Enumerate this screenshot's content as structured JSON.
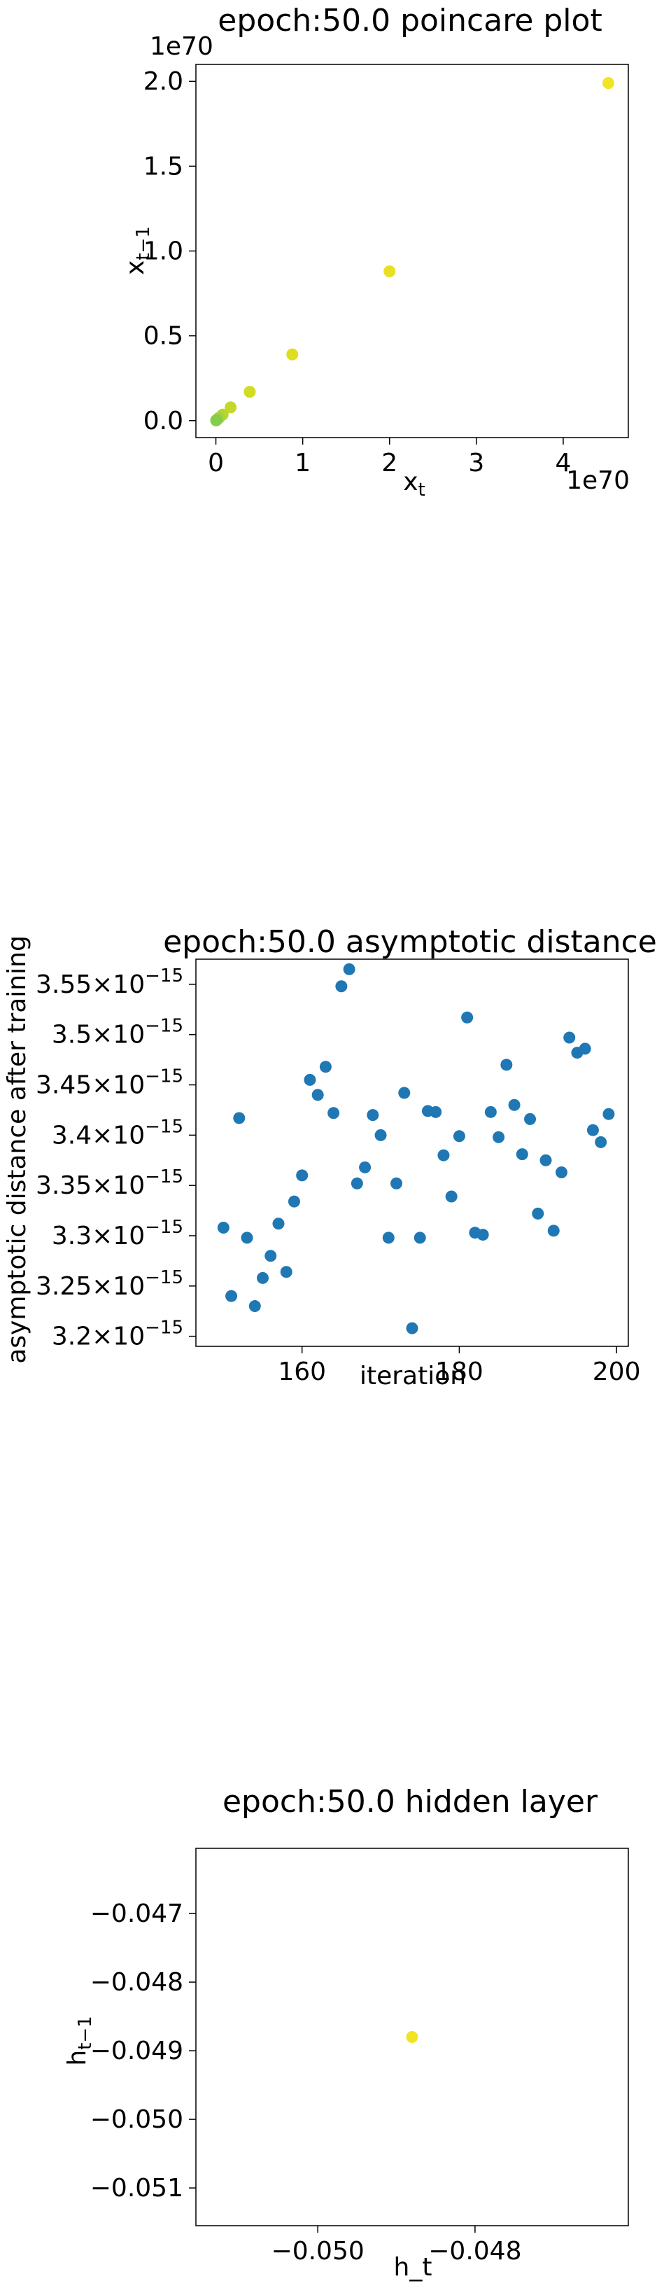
{
  "chart_data": [
    {
      "type": "scatter",
      "title": "epoch:50.0 poincare plot",
      "xlabel": "x_t",
      "ylabel": "x_{t-1}",
      "x_offset_label": "1e70",
      "y_offset_label": "1e70",
      "xlim": [
        -0.23,
        4.75
      ],
      "ylim": [
        -0.1,
        2.1
      ],
      "xticks": [
        {
          "v": 0,
          "label": "0"
        },
        {
          "v": 1,
          "label": "1"
        },
        {
          "v": 2,
          "label": "2"
        },
        {
          "v": 3,
          "label": "3"
        },
        {
          "v": 4,
          "label": "4"
        }
      ],
      "yticks": [
        {
          "v": 0.0,
          "label": "0.0"
        },
        {
          "v": 0.5,
          "label": "0.5"
        },
        {
          "v": 1.0,
          "label": "1.0"
        },
        {
          "v": 1.5,
          "label": "1.5"
        },
        {
          "v": 2.0,
          "label": "2.0"
        }
      ],
      "points": [
        {
          "x": 4.52,
          "y": 1.99,
          "color": "#f0e523"
        },
        {
          "x": 2.0,
          "y": 0.88,
          "color": "#e8e022"
        },
        {
          "x": 0.88,
          "y": 0.39,
          "color": "#dfdd20"
        },
        {
          "x": 0.39,
          "y": 0.17,
          "color": "#d2dc22"
        },
        {
          "x": 0.17,
          "y": 0.078,
          "color": "#c2d92a"
        },
        {
          "x": 0.078,
          "y": 0.035,
          "color": "#b3d632"
        },
        {
          "x": 0.035,
          "y": 0.016,
          "color": "#a5d33a"
        },
        {
          "x": 0.016,
          "y": 0.007,
          "color": "#97d140"
        },
        {
          "x": 0.007,
          "y": 0.003,
          "color": "#8dcf45"
        },
        {
          "x": 0.003,
          "y": 0.001,
          "color": "#86cc48"
        }
      ]
    },
    {
      "type": "scatter",
      "title": "epoch:50.0 asymptotic distance",
      "xlabel": "iteration",
      "ylabel": "asymptotic distance after training",
      "xlim": [
        146.5,
        201.5
      ],
      "ylim": [
        3.19e-15,
        3.575e-15
      ],
      "xticks": [
        {
          "v": 160,
          "label": "160"
        },
        {
          "v": 180,
          "label": "180"
        },
        {
          "v": 200,
          "label": "200"
        }
      ],
      "yticks": [
        {
          "v": 3.2e-15,
          "mant": "3.2"
        },
        {
          "v": 3.25e-15,
          "mant": "3.25"
        },
        {
          "v": 3.3e-15,
          "mant": "3.3"
        },
        {
          "v": 3.35e-15,
          "mant": "3.35"
        },
        {
          "v": 3.4e-15,
          "mant": "3.4"
        },
        {
          "v": 3.45e-15,
          "mant": "3.45"
        },
        {
          "v": 3.5e-15,
          "mant": "3.5"
        },
        {
          "v": 3.55e-15,
          "mant": "3.55"
        }
      ],
      "ytick_base": "×10",
      "ytick_exp": "−15",
      "color": "#1f77b4",
      "x": [
        150,
        151,
        152,
        153,
        154,
        155,
        156,
        157,
        158,
        159,
        160,
        161,
        162,
        163,
        164,
        165,
        166,
        167,
        168,
        169,
        170,
        171,
        172,
        173,
        174,
        175,
        176,
        177,
        178,
        179,
        180,
        181,
        182,
        183,
        184,
        185,
        186,
        187,
        188,
        189,
        190,
        191,
        192,
        193,
        194,
        195,
        196,
        197,
        198,
        199
      ],
      "y": [
        3.308e-15,
        3.24e-15,
        3.417e-15,
        3.298e-15,
        3.23e-15,
        3.258e-15,
        3.28e-15,
        3.312e-15,
        3.264e-15,
        3.334e-15,
        3.36e-15,
        3.455e-15,
        3.44e-15,
        3.468e-15,
        3.422e-15,
        3.548e-15,
        3.565e-15,
        3.352e-15,
        3.368e-15,
        3.42e-15,
        3.4e-15,
        3.298e-15,
        3.352e-15,
        3.442e-15,
        3.208e-15,
        3.298e-15,
        3.424e-15,
        3.423e-15,
        3.38e-15,
        3.339e-15,
        3.399e-15,
        3.517e-15,
        3.303e-15,
        3.301e-15,
        3.423e-15,
        3.398e-15,
        3.47e-15,
        3.43e-15,
        3.381e-15,
        3.416e-15,
        3.322e-15,
        3.375e-15,
        3.305e-15,
        3.363e-15,
        3.497e-15,
        3.482e-15,
        3.486e-15,
        3.405e-15,
        3.393e-15,
        3.421e-15
      ]
    },
    {
      "type": "scatter",
      "title": "epoch:50.0 hidden layer",
      "xlabel": "h_t",
      "ylabel": "h_{t-1}",
      "xlim": [
        -0.05155,
        -0.04605
      ],
      "ylim": [
        -0.05155,
        -0.04605
      ],
      "xticks": [
        {
          "v": -0.05,
          "label": "−0.050"
        },
        {
          "v": -0.048,
          "label": "−0.048"
        }
      ],
      "yticks": [
        {
          "v": -0.047,
          "label": "−0.047"
        },
        {
          "v": -0.048,
          "label": "−0.048"
        },
        {
          "v": -0.049,
          "label": "−0.049"
        },
        {
          "v": -0.05,
          "label": "−0.050"
        },
        {
          "v": -0.051,
          "label": "−0.051"
        }
      ],
      "points": [
        {
          "x": -0.0488,
          "y": -0.0488,
          "color": "#f0e523"
        }
      ]
    }
  ]
}
